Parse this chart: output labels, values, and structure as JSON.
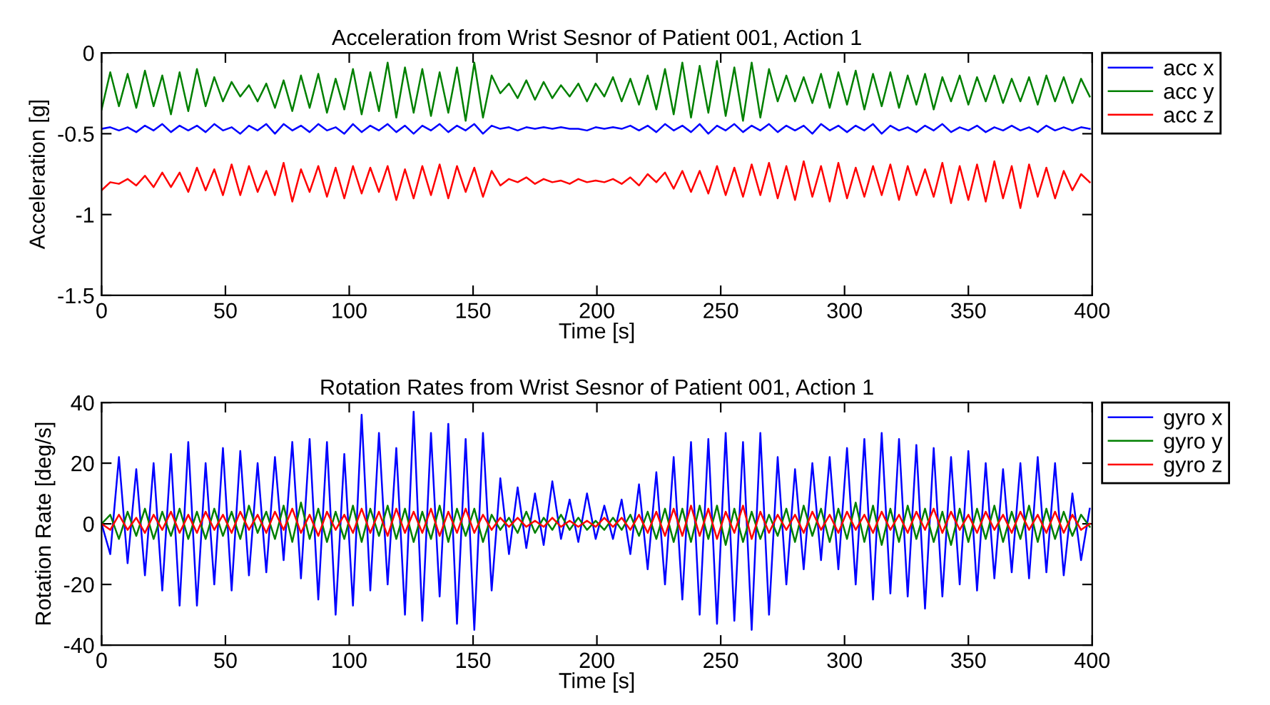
{
  "chart_data": [
    {
      "type": "line",
      "title": "Acceleration from Wrist Sesnor of Patient 001, Action 1",
      "xlabel": "Time [s]",
      "ylabel": "Acceleration [g]",
      "x": [
        0,
        3.5,
        7,
        10.5,
        14,
        17.5,
        21,
        24.5,
        28,
        31.5,
        35,
        38.5,
        42,
        45.5,
        49,
        52.5,
        56,
        59.5,
        63,
        66.5,
        70,
        73.5,
        77,
        80.5,
        84,
        87.5,
        91,
        94.5,
        98,
        101.5,
        105,
        108.5,
        112,
        115.5,
        119,
        122.5,
        126,
        129.5,
        133,
        136.5,
        140,
        143.5,
        147,
        150.5,
        154,
        157.5,
        161,
        164.5,
        168,
        171.5,
        175,
        178.5,
        182,
        185.5,
        189,
        192.5,
        196,
        199.5,
        203,
        206.5,
        210,
        213.5,
        217,
        220.5,
        224,
        227.5,
        231,
        234.5,
        238,
        241.5,
        245,
        248.5,
        252,
        255.5,
        259,
        262.5,
        266,
        269.5,
        273,
        276.5,
        280,
        283.5,
        287,
        290.5,
        294,
        297.5,
        301,
        304.5,
        308,
        311.5,
        315,
        318.5,
        322,
        325.5,
        329,
        332.5,
        336,
        339.5,
        343,
        346.5,
        350,
        353.5,
        357,
        360.5,
        364,
        367.5,
        371,
        374.5,
        378,
        381.5,
        385,
        388.5,
        392,
        395.5,
        399
      ],
      "series": [
        {
          "name": "acc x",
          "color": "#0000ff",
          "values": [
            -0.47,
            -0.46,
            -0.48,
            -0.46,
            -0.49,
            -0.45,
            -0.48,
            -0.44,
            -0.49,
            -0.45,
            -0.48,
            -0.45,
            -0.49,
            -0.44,
            -0.48,
            -0.46,
            -0.5,
            -0.45,
            -0.48,
            -0.44,
            -0.5,
            -0.44,
            -0.48,
            -0.45,
            -0.49,
            -0.44,
            -0.48,
            -0.46,
            -0.5,
            -0.44,
            -0.49,
            -0.45,
            -0.48,
            -0.44,
            -0.49,
            -0.45,
            -0.5,
            -0.45,
            -0.48,
            -0.44,
            -0.49,
            -0.45,
            -0.48,
            -0.44,
            -0.5,
            -0.45,
            -0.47,
            -0.46,
            -0.48,
            -0.46,
            -0.47,
            -0.46,
            -0.47,
            -0.46,
            -0.47,
            -0.47,
            -0.48,
            -0.46,
            -0.47,
            -0.46,
            -0.47,
            -0.45,
            -0.48,
            -0.45,
            -0.49,
            -0.44,
            -0.48,
            -0.45,
            -0.49,
            -0.44,
            -0.5,
            -0.45,
            -0.48,
            -0.44,
            -0.49,
            -0.45,
            -0.48,
            -0.44,
            -0.49,
            -0.45,
            -0.48,
            -0.45,
            -0.5,
            -0.44,
            -0.48,
            -0.45,
            -0.49,
            -0.45,
            -0.48,
            -0.44,
            -0.5,
            -0.45,
            -0.48,
            -0.46,
            -0.49,
            -0.45,
            -0.48,
            -0.44,
            -0.49,
            -0.46,
            -0.48,
            -0.45,
            -0.49,
            -0.46,
            -0.48,
            -0.45,
            -0.48,
            -0.46,
            -0.49,
            -0.45,
            -0.48,
            -0.46,
            -0.48,
            -0.46,
            -0.47
          ]
        },
        {
          "name": "acc y",
          "color": "#008000",
          "values": [
            -0.35,
            -0.12,
            -0.33,
            -0.13,
            -0.34,
            -0.11,
            -0.33,
            -0.14,
            -0.38,
            -0.12,
            -0.36,
            -0.1,
            -0.33,
            -0.15,
            -0.3,
            -0.18,
            -0.27,
            -0.2,
            -0.3,
            -0.19,
            -0.34,
            -0.17,
            -0.36,
            -0.14,
            -0.34,
            -0.13,
            -0.37,
            -0.16,
            -0.35,
            -0.1,
            -0.38,
            -0.12,
            -0.36,
            -0.06,
            -0.4,
            -0.09,
            -0.37,
            -0.1,
            -0.39,
            -0.12,
            -0.37,
            -0.09,
            -0.42,
            -0.06,
            -0.4,
            -0.14,
            -0.25,
            -0.19,
            -0.28,
            -0.17,
            -0.29,
            -0.18,
            -0.28,
            -0.2,
            -0.27,
            -0.19,
            -0.3,
            -0.19,
            -0.27,
            -0.15,
            -0.3,
            -0.16,
            -0.32,
            -0.14,
            -0.35,
            -0.1,
            -0.38,
            -0.06,
            -0.4,
            -0.08,
            -0.37,
            -0.05,
            -0.39,
            -0.09,
            -0.42,
            -0.06,
            -0.4,
            -0.1,
            -0.3,
            -0.14,
            -0.3,
            -0.15,
            -0.31,
            -0.13,
            -0.34,
            -0.12,
            -0.32,
            -0.11,
            -0.35,
            -0.13,
            -0.33,
            -0.12,
            -0.34,
            -0.14,
            -0.32,
            -0.13,
            -0.35,
            -0.15,
            -0.3,
            -0.14,
            -0.32,
            -0.15,
            -0.3,
            -0.14,
            -0.31,
            -0.16,
            -0.3,
            -0.15,
            -0.32,
            -0.14,
            -0.3,
            -0.15,
            -0.31,
            -0.16,
            -0.27
          ]
        },
        {
          "name": "acc z",
          "color": "#ff0000",
          "values": [
            -0.85,
            -0.8,
            -0.81,
            -0.78,
            -0.82,
            -0.76,
            -0.83,
            -0.74,
            -0.83,
            -0.74,
            -0.86,
            -0.71,
            -0.85,
            -0.72,
            -0.88,
            -0.69,
            -0.88,
            -0.7,
            -0.86,
            -0.73,
            -0.88,
            -0.68,
            -0.92,
            -0.72,
            -0.86,
            -0.7,
            -0.89,
            -0.71,
            -0.9,
            -0.7,
            -0.87,
            -0.71,
            -0.86,
            -0.7,
            -0.91,
            -0.72,
            -0.9,
            -0.7,
            -0.88,
            -0.69,
            -0.9,
            -0.7,
            -0.86,
            -0.71,
            -0.89,
            -0.73,
            -0.82,
            -0.78,
            -0.8,
            -0.77,
            -0.81,
            -0.78,
            -0.8,
            -0.79,
            -0.81,
            -0.78,
            -0.8,
            -0.79,
            -0.8,
            -0.78,
            -0.81,
            -0.77,
            -0.82,
            -0.75,
            -0.8,
            -0.74,
            -0.84,
            -0.73,
            -0.86,
            -0.73,
            -0.87,
            -0.7,
            -0.88,
            -0.71,
            -0.89,
            -0.69,
            -0.88,
            -0.68,
            -0.9,
            -0.7,
            -0.91,
            -0.67,
            -0.89,
            -0.7,
            -0.92,
            -0.68,
            -0.9,
            -0.71,
            -0.89,
            -0.7,
            -0.88,
            -0.69,
            -0.91,
            -0.7,
            -0.88,
            -0.72,
            -0.89,
            -0.68,
            -0.93,
            -0.7,
            -0.91,
            -0.69,
            -0.92,
            -0.67,
            -0.9,
            -0.7,
            -0.96,
            -0.69,
            -0.89,
            -0.71,
            -0.9,
            -0.73,
            -0.85,
            -0.75,
            -0.8
          ]
        }
      ],
      "xlim": [
        0,
        400
      ],
      "xticks": [
        0,
        50,
        100,
        150,
        200,
        250,
        300,
        350,
        400
      ],
      "ylim": [
        -1.5,
        0
      ],
      "yticks": [
        -1.5,
        -1,
        -0.5,
        0
      ],
      "grid": false,
      "legend": "right",
      "line_style": "solid",
      "marker": "none"
    },
    {
      "type": "line",
      "title": "Rotation Rates from Wrist Sesnor of Patient 001, Action 1",
      "xlabel": "Time [s]",
      "ylabel": "Rotation Rate [deg/s]",
      "x": [
        0,
        3.5,
        7,
        10.5,
        14,
        17.5,
        21,
        24.5,
        28,
        31.5,
        35,
        38.5,
        42,
        45.5,
        49,
        52.5,
        56,
        59.5,
        63,
        66.5,
        70,
        73.5,
        77,
        80.5,
        84,
        87.5,
        91,
        94.5,
        98,
        101.5,
        105,
        108.5,
        112,
        115.5,
        119,
        122.5,
        126,
        129.5,
        133,
        136.5,
        140,
        143.5,
        147,
        150.5,
        154,
        157.5,
        161,
        164.5,
        168,
        171.5,
        175,
        178.5,
        182,
        185.5,
        189,
        192.5,
        196,
        199.5,
        203,
        206.5,
        210,
        213.5,
        217,
        220.5,
        224,
        227.5,
        231,
        234.5,
        238,
        241.5,
        245,
        248.5,
        252,
        255.5,
        259,
        262.5,
        266,
        269.5,
        273,
        276.5,
        280,
        283.5,
        287,
        290.5,
        294,
        297.5,
        301,
        304.5,
        308,
        311.5,
        315,
        318.5,
        322,
        325.5,
        329,
        332.5,
        336,
        339.5,
        343,
        346.5,
        350,
        353.5,
        357,
        360.5,
        364,
        367.5,
        371,
        374.5,
        378,
        381.5,
        385,
        388.5,
        392,
        395.5,
        399
      ],
      "series": [
        {
          "name": "gyro x",
          "color": "#0000ff",
          "values": [
            0,
            -10,
            22,
            -13,
            18,
            -17,
            20,
            -22,
            23,
            -27,
            27,
            -27,
            20,
            -20,
            25,
            -22,
            24,
            -17,
            20,
            -16,
            22,
            -12,
            27,
            -18,
            28,
            -25,
            27,
            -30,
            23,
            -27,
            36,
            -22,
            30,
            -20,
            25,
            -30,
            37,
            -32,
            30,
            -24,
            33,
            -33,
            28,
            -35,
            30,
            -22,
            15,
            -10,
            12,
            -8,
            10,
            -7,
            14,
            -5,
            8,
            -6,
            10,
            -5,
            6,
            -5,
            8,
            -10,
            13,
            -15,
            17,
            -20,
            22,
            -25,
            27,
            -30,
            28,
            -33,
            30,
            -32,
            27,
            -35,
            30,
            -30,
            22,
            -20,
            18,
            -15,
            20,
            -12,
            22,
            -15,
            25,
            -20,
            28,
            -25,
            30,
            -23,
            28,
            -24,
            26,
            -28,
            25,
            -24,
            22,
            -20,
            24,
            -22,
            20,
            -18,
            18,
            -16,
            20,
            -18,
            22,
            -16,
            20,
            -17,
            10,
            -12,
            5
          ]
        },
        {
          "name": "gyro y",
          "color": "#008000",
          "values": [
            0,
            3,
            -5,
            4,
            -4,
            5,
            -5,
            4,
            -4,
            5,
            -5,
            4,
            -5,
            5,
            -4,
            4,
            -5,
            6,
            -3,
            4,
            -5,
            6,
            -6,
            7,
            -5,
            5,
            -6,
            4,
            -5,
            6,
            -6,
            5,
            -4,
            6,
            -5,
            5,
            -6,
            4,
            -5,
            6,
            -6,
            5,
            -4,
            5,
            -6,
            3,
            -2,
            2,
            -3,
            4,
            -3,
            2,
            -2,
            3,
            -2,
            2,
            -2,
            1,
            -2,
            2,
            -2,
            3,
            -4,
            4,
            -5,
            5,
            -6,
            5,
            -6,
            6,
            -5,
            6,
            -7,
            5,
            -6,
            4,
            -5,
            3,
            -4,
            5,
            -6,
            6,
            -4,
            5,
            -6,
            5,
            -5,
            7,
            -6,
            6,
            -7,
            5,
            -6,
            6,
            -5,
            5,
            -6,
            4,
            -7,
            5,
            -6,
            5,
            -5,
            6,
            -6,
            4,
            -5,
            6,
            -6,
            5,
            -5,
            4,
            -4,
            3,
            -1
          ]
        },
        {
          "name": "gyro z",
          "color": "#ff0000",
          "values": [
            0,
            -2,
            3,
            -2,
            2,
            -3,
            3,
            -2,
            4,
            -3,
            3,
            -3,
            4,
            -2,
            3,
            -3,
            4,
            -2,
            3,
            -3,
            4,
            -2,
            5,
            -3,
            3,
            -4,
            4,
            -2,
            3,
            -3,
            5,
            -3,
            4,
            -4,
            5,
            -3,
            4,
            -3,
            5,
            -4,
            4,
            -3,
            5,
            -3,
            3,
            -2,
            2,
            -1,
            2,
            -1,
            1,
            -1,
            2,
            -1,
            1,
            -1,
            1,
            -1,
            2,
            -1,
            2,
            -2,
            3,
            -3,
            4,
            -4,
            5,
            -4,
            6,
            -4,
            5,
            -5,
            4,
            -3,
            6,
            -5,
            4,
            -3,
            3,
            -2,
            3,
            -3,
            4,
            -2,
            3,
            -3,
            4,
            -2,
            3,
            -3,
            4,
            -2,
            3,
            -3,
            4,
            -2,
            5,
            -3,
            4,
            -2,
            3,
            -3,
            4,
            -2,
            3,
            -3,
            4,
            -2,
            3,
            -3,
            4,
            -3,
            3,
            -2,
            0
          ]
        }
      ],
      "xlim": [
        0,
        400
      ],
      "xticks": [
        0,
        50,
        100,
        150,
        200,
        250,
        300,
        350,
        400
      ],
      "ylim": [
        -40,
        40
      ],
      "yticks": [
        -40,
        -20,
        0,
        20,
        40
      ],
      "grid": false,
      "legend": "right",
      "line_style": "solid",
      "marker": "none"
    }
  ]
}
